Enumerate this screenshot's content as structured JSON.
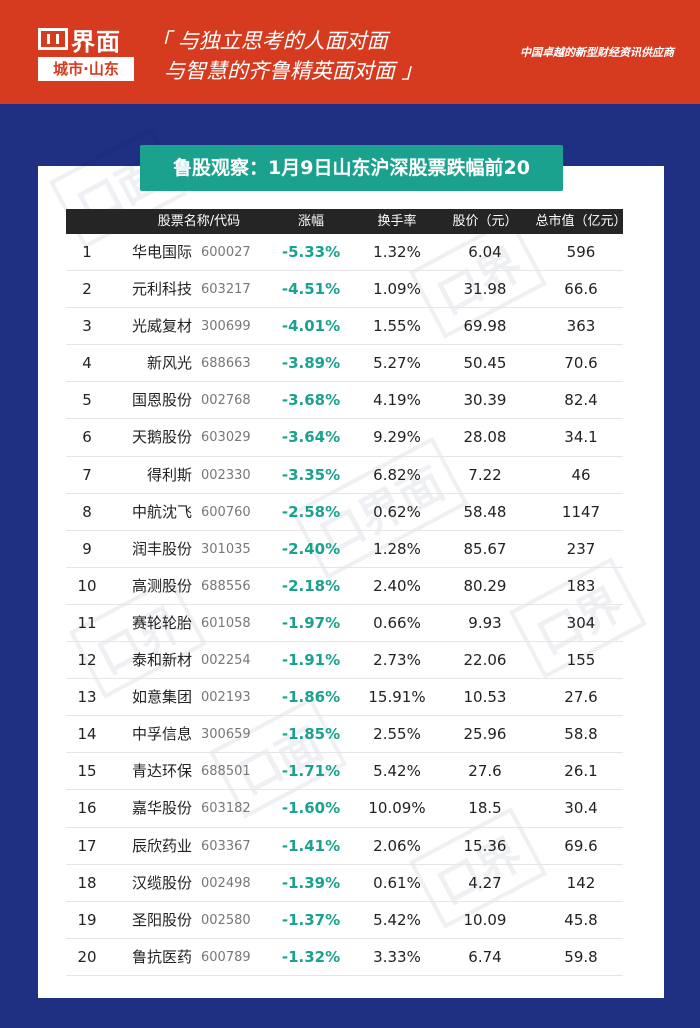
{
  "header": {
    "logo_main": "界面",
    "logo_sub": "城市·山东",
    "slogan_line1": "「 与独立思考的人面对面",
    "slogan_line2": "与智慧的齐鲁精英面对面 」",
    "tagline": "中国卓越的新型财经资讯供应商",
    "bg_color": "#d63b20"
  },
  "title": "鲁股观察：1月9日山东沪深股票跌幅前20",
  "table": {
    "headers": {
      "name_code": "股票名称/代码",
      "change": "涨幅",
      "turnover": "换手率",
      "price": "股价（元）",
      "market_cap": "总市值（亿元）"
    },
    "rows": [
      {
        "rank": "1",
        "name": "华电国际",
        "code": "600027",
        "change": "-5.33%",
        "turnover": "1.32%",
        "price": "6.04",
        "cap": "596"
      },
      {
        "rank": "2",
        "name": "元利科技",
        "code": "603217",
        "change": "-4.51%",
        "turnover": "1.09%",
        "price": "31.98",
        "cap": "66.6"
      },
      {
        "rank": "3",
        "name": "光威复材",
        "code": "300699",
        "change": "-4.01%",
        "turnover": "1.55%",
        "price": "69.98",
        "cap": "363"
      },
      {
        "rank": "4",
        "name": "新风光",
        "code": "688663",
        "change": "-3.89%",
        "turnover": "5.27%",
        "price": "50.45",
        "cap": "70.6"
      },
      {
        "rank": "5",
        "name": "国恩股份",
        "code": "002768",
        "change": "-3.68%",
        "turnover": "4.19%",
        "price": "30.39",
        "cap": "82.4"
      },
      {
        "rank": "6",
        "name": "天鹅股份",
        "code": "603029",
        "change": "-3.64%",
        "turnover": "9.29%",
        "price": "28.08",
        "cap": "34.1"
      },
      {
        "rank": "7",
        "name": "得利斯",
        "code": "002330",
        "change": "-3.35%",
        "turnover": "6.82%",
        "price": "7.22",
        "cap": "46"
      },
      {
        "rank": "8",
        "name": "中航沈飞",
        "code": "600760",
        "change": "-2.58%",
        "turnover": "0.62%",
        "price": "58.48",
        "cap": "1147"
      },
      {
        "rank": "9",
        "name": "润丰股份",
        "code": "301035",
        "change": "-2.40%",
        "turnover": "1.28%",
        "price": "85.67",
        "cap": "237"
      },
      {
        "rank": "10",
        "name": "高测股份",
        "code": "688556",
        "change": "-2.18%",
        "turnover": "2.40%",
        "price": "80.29",
        "cap": "183"
      },
      {
        "rank": "11",
        "name": "赛轮轮胎",
        "code": "601058",
        "change": "-1.97%",
        "turnover": "0.66%",
        "price": "9.93",
        "cap": "304"
      },
      {
        "rank": "12",
        "name": "泰和新材",
        "code": "002254",
        "change": "-1.91%",
        "turnover": "2.73%",
        "price": "22.06",
        "cap": "155"
      },
      {
        "rank": "13",
        "name": "如意集团",
        "code": "002193",
        "change": "-1.86%",
        "turnover": "15.91%",
        "price": "10.53",
        "cap": "27.6"
      },
      {
        "rank": "14",
        "name": "中孚信息",
        "code": "300659",
        "change": "-1.85%",
        "turnover": "2.55%",
        "price": "25.96",
        "cap": "58.8"
      },
      {
        "rank": "15",
        "name": "青达环保",
        "code": "688501",
        "change": "-1.71%",
        "turnover": "5.42%",
        "price": "27.6",
        "cap": "26.1"
      },
      {
        "rank": "16",
        "name": "嘉华股份",
        "code": "603182",
        "change": "-1.60%",
        "turnover": "10.09%",
        "price": "18.5",
        "cap": "30.4"
      },
      {
        "rank": "17",
        "name": "辰欣药业",
        "code": "603367",
        "change": "-1.41%",
        "turnover": "2.06%",
        "price": "15.36",
        "cap": "69.6"
      },
      {
        "rank": "18",
        "name": "汉缆股份",
        "code": "002498",
        "change": "-1.39%",
        "turnover": "0.61%",
        "price": "4.27",
        "cap": "142"
      },
      {
        "rank": "19",
        "name": "圣阳股份",
        "code": "002580",
        "change": "-1.37%",
        "turnover": "5.42%",
        "price": "10.09",
        "cap": "45.8"
      },
      {
        "rank": "20",
        "name": "鲁抗医药",
        "code": "600789",
        "change": "-1.32%",
        "turnover": "3.33%",
        "price": "6.74",
        "cap": "59.8"
      }
    ]
  },
  "colors": {
    "background": "#1f2f82",
    "accent": "#1aa28e",
    "header_bar": "#252525"
  }
}
